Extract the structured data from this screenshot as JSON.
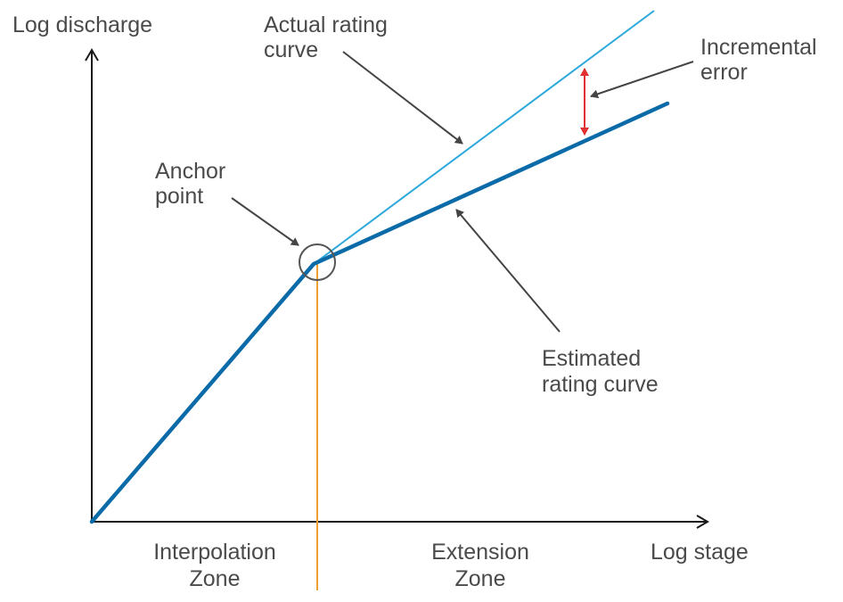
{
  "axes": {
    "y_label": "Log discharge",
    "x_label": "Log stage"
  },
  "annotations": {
    "actual_curve": [
      "Actual rating",
      "curve"
    ],
    "incremental_error": [
      "Incremental",
      "error"
    ],
    "anchor_point": [
      "Anchor",
      "point"
    ],
    "estimated_curve": [
      "Estimated",
      "rating curve"
    ],
    "interpolation_zone": [
      "Interpolation",
      "Zone"
    ],
    "extension_zone": [
      "Extension",
      "Zone"
    ]
  },
  "colors": {
    "axis": "#1a1a1a",
    "estimated_curve": "#0b6aa8",
    "actual_curve": "#2ca8dc",
    "zone_divider": "#f0a030",
    "incremental_error": "#e03030",
    "pointer_arrows": "#444444",
    "anchor_circle": "#555555",
    "text": "#4a4a4a"
  }
}
